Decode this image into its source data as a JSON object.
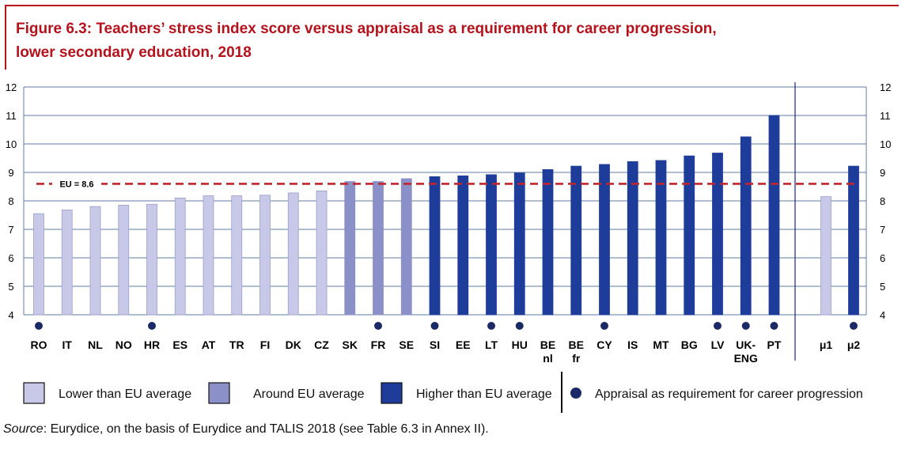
{
  "title": {
    "line1": "Figure 6.3: Teachers’ stress index score versus appraisal as a requirement for career progression,",
    "line2": "lower secondary education, 2018"
  },
  "chart_data": {
    "type": "bar",
    "ylim": [
      4,
      12
    ],
    "yticks": [
      "4",
      "5",
      "6",
      "7",
      "8",
      "9",
      "10",
      "11",
      "12"
    ],
    "reference_line": {
      "label": "EU = 8.6",
      "value": 8.6,
      "color": "#c0262d"
    },
    "categories": [
      {
        "label": [
          "RO"
        ],
        "value": 7.55,
        "group": "lower",
        "appraisal": true
      },
      {
        "label": [
          "IT"
        ],
        "value": 7.68,
        "group": "lower",
        "appraisal": false
      },
      {
        "label": [
          "NL"
        ],
        "value": 7.8,
        "group": "lower",
        "appraisal": false
      },
      {
        "label": [
          "NO"
        ],
        "value": 7.85,
        "group": "lower",
        "appraisal": false
      },
      {
        "label": [
          "HR"
        ],
        "value": 7.88,
        "group": "lower",
        "appraisal": true
      },
      {
        "label": [
          "ES"
        ],
        "value": 8.1,
        "group": "lower",
        "appraisal": false
      },
      {
        "label": [
          "AT"
        ],
        "value": 8.18,
        "group": "lower",
        "appraisal": false
      },
      {
        "label": [
          "TR"
        ],
        "value": 8.18,
        "group": "lower",
        "appraisal": false
      },
      {
        "label": [
          "FI"
        ],
        "value": 8.2,
        "group": "lower",
        "appraisal": false
      },
      {
        "label": [
          "DK"
        ],
        "value": 8.28,
        "group": "lower",
        "appraisal": false
      },
      {
        "label": [
          "CZ"
        ],
        "value": 8.35,
        "group": "lower",
        "appraisal": false
      },
      {
        "label": [
          "SK"
        ],
        "value": 8.68,
        "group": "around",
        "appraisal": false
      },
      {
        "label": [
          "FR"
        ],
        "value": 8.68,
        "group": "around",
        "appraisal": true
      },
      {
        "label": [
          "SE"
        ],
        "value": 8.78,
        "group": "around",
        "appraisal": false
      },
      {
        "label": [
          "SI"
        ],
        "value": 8.85,
        "group": "higher",
        "appraisal": true
      },
      {
        "label": [
          "EE"
        ],
        "value": 8.88,
        "group": "higher",
        "appraisal": false
      },
      {
        "label": [
          "LT"
        ],
        "value": 8.92,
        "group": "higher",
        "appraisal": true
      },
      {
        "label": [
          "HU"
        ],
        "value": 8.98,
        "group": "higher",
        "appraisal": true
      },
      {
        "label": [
          "BE",
          "nl"
        ],
        "value": 9.1,
        "group": "higher",
        "appraisal": false
      },
      {
        "label": [
          "BE",
          "fr"
        ],
        "value": 9.22,
        "group": "higher",
        "appraisal": false
      },
      {
        "label": [
          "CY"
        ],
        "value": 9.28,
        "group": "higher",
        "appraisal": true
      },
      {
        "label": [
          "IS"
        ],
        "value": 9.38,
        "group": "higher",
        "appraisal": false
      },
      {
        "label": [
          "MT"
        ],
        "value": 9.42,
        "group": "higher",
        "appraisal": false
      },
      {
        "label": [
          "BG"
        ],
        "value": 9.58,
        "group": "higher",
        "appraisal": false
      },
      {
        "label": [
          "LV"
        ],
        "value": 9.68,
        "group": "higher",
        "appraisal": true
      },
      {
        "label": [
          "UK-",
          "ENG"
        ],
        "value": 10.25,
        "group": "higher",
        "appraisal": true
      },
      {
        "label": [
          "PT"
        ],
        "value": 11.0,
        "group": "higher",
        "appraisal": true
      }
    ],
    "averages": [
      {
        "label": [
          "μ1"
        ],
        "value": 8.15,
        "group": "lower",
        "appraisal": false
      },
      {
        "label": [
          "μ2"
        ],
        "value": 9.22,
        "group": "higher",
        "appraisal": true
      }
    ],
    "colors": {
      "lower": "#c8c8e8",
      "around": "#8b90c8",
      "higher": "#1e3d9a",
      "dot": "#1b2a66",
      "grid": "#5f7fa3",
      "bar_edge": "#9aa0c8"
    },
    "legend": {
      "lower": "Lower than EU average",
      "around": "Around EU average",
      "higher": "Higher than EU average",
      "appraisal": "Appraisal as requirement for career progression"
    }
  },
  "source": {
    "label": "Source",
    "text": ": Eurydice, on the basis of Eurydice and TALIS 2018 (see Table 6.3 in Annex II)."
  }
}
